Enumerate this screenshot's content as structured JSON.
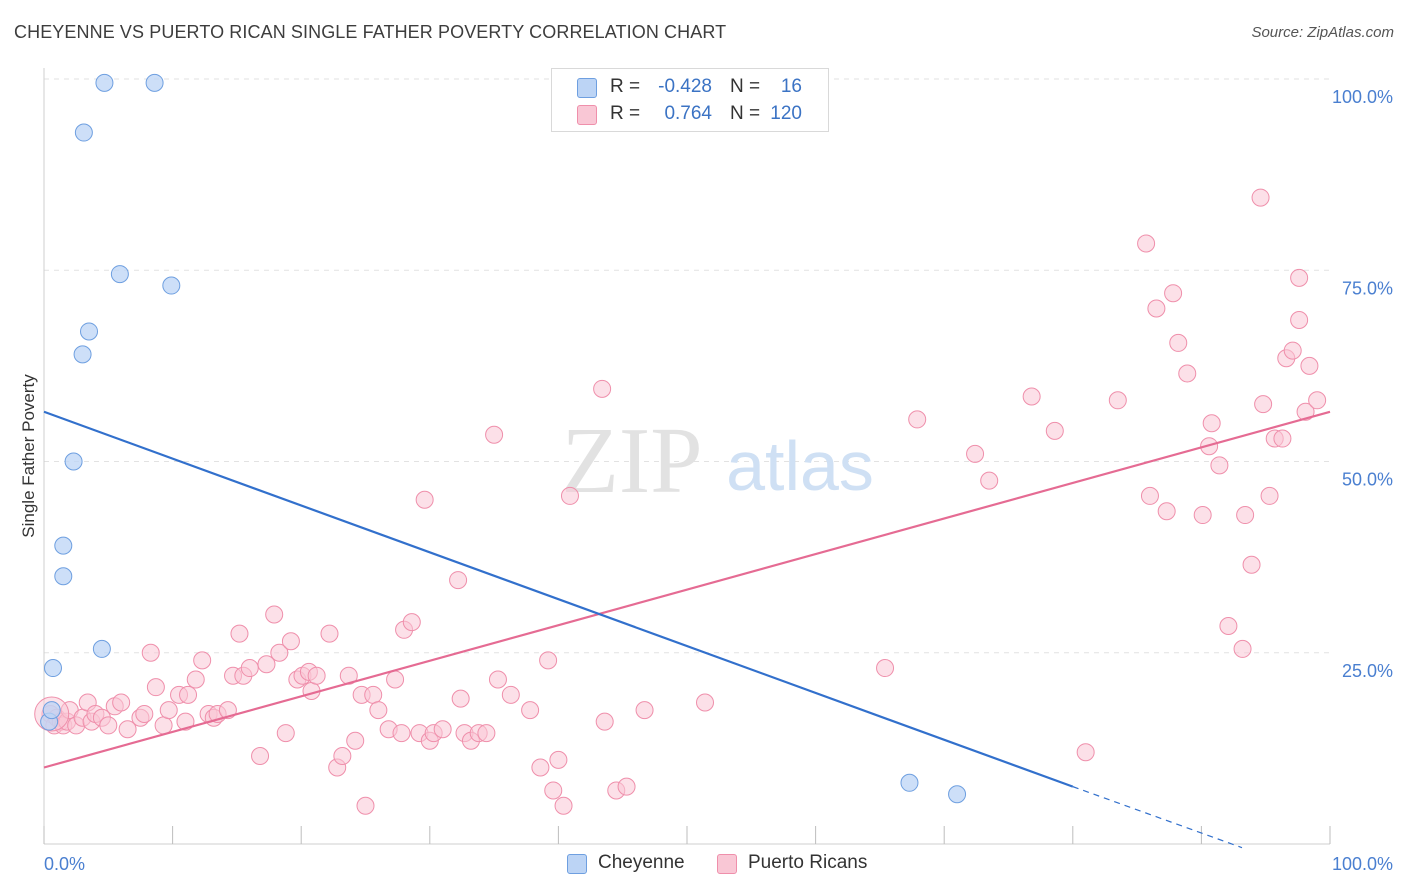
{
  "title": "CHEYENNE VS PUERTO RICAN SINGLE FATHER POVERTY CORRELATION CHART",
  "source": "Source: ZipAtlas.com",
  "watermark": {
    "zip": "ZIP",
    "atlas": "atlas"
  },
  "stats": [
    {
      "r_label": "R =",
      "r_value": "-0.428",
      "n_label": "N =",
      "n_value": "16",
      "color": "#a9c8f2"
    },
    {
      "r_label": "R =",
      "r_value": "0.764",
      "n_label": "N =",
      "n_value": "120",
      "color": "#f7b3c6"
    }
  ],
  "legend": [
    {
      "label": "Cheyenne",
      "color": "#a9c8f2"
    },
    {
      "label": "Puerto Ricans",
      "color": "#f7b3c6"
    }
  ],
  "colors": {
    "cheyenne_fill": "#bcd4f5",
    "cheyenne_stroke": "#6e9fe0",
    "cheyenne_line": "#3270cc",
    "pr_fill": "#f9c7d5",
    "pr_stroke": "#ef8fab",
    "pr_line": "#e56b93",
    "grid": "#e2e2e2",
    "axis_text": "#4a7fd0"
  },
  "chart_data": {
    "type": "scatter",
    "title": "CHEYENNE VS PUERTO RICAN SINGLE FATHER POVERTY CORRELATION CHART",
    "xlabel": "",
    "ylabel": "Single Father Poverty",
    "x_tick_labels": [
      "0.0%",
      "100.0%"
    ],
    "y_tick_labels": [
      "25.0%",
      "50.0%",
      "75.0%",
      "100.0%"
    ],
    "xlim": [
      0,
      100
    ],
    "ylim": [
      0,
      100
    ],
    "grid": true,
    "legend_position": "bottom-center",
    "series": [
      {
        "name": "Cheyenne",
        "points": [
          [
            0.4,
            16
          ],
          [
            0.6,
            17.5
          ],
          [
            0.7,
            23
          ],
          [
            1.5,
            35
          ],
          [
            1.5,
            39
          ],
          [
            2.3,
            50
          ],
          [
            3,
            64
          ],
          [
            3.1,
            93
          ],
          [
            3.5,
            67
          ],
          [
            4.5,
            25.5
          ],
          [
            4.7,
            99.5
          ],
          [
            5.9,
            74.5
          ],
          [
            8.6,
            99.5
          ],
          [
            9.9,
            73
          ],
          [
            67.3,
            8
          ],
          [
            71,
            6.5
          ]
        ],
        "trend": {
          "x": [
            0,
            80
          ],
          "y": [
            56.5,
            7.5
          ],
          "dashed_to": [
            100,
            -1
          ]
        }
      },
      {
        "name": "Puerto Ricans",
        "points": [
          [
            0.5,
            17
          ],
          [
            0.8,
            15.5
          ],
          [
            1,
            16.5
          ],
          [
            1.3,
            16
          ],
          [
            1.5,
            15.5
          ],
          [
            1.8,
            16
          ],
          [
            2,
            17.5
          ],
          [
            2.5,
            15.5
          ],
          [
            3,
            16.5
          ],
          [
            3.4,
            18.5
          ],
          [
            3.7,
            16
          ],
          [
            4,
            17
          ],
          [
            4.5,
            16.5
          ],
          [
            5,
            15.5
          ],
          [
            5.5,
            18
          ],
          [
            6,
            18.5
          ],
          [
            6.5,
            15
          ],
          [
            7.5,
            16.5
          ],
          [
            7.8,
            17
          ],
          [
            8.3,
            25
          ],
          [
            8.7,
            20.5
          ],
          [
            9.3,
            15.5
          ],
          [
            9.7,
            17.5
          ],
          [
            10.5,
            19.5
          ],
          [
            11,
            16
          ],
          [
            11.2,
            19.5
          ],
          [
            11.8,
            21.5
          ],
          [
            12.3,
            24
          ],
          [
            12.8,
            17
          ],
          [
            13.2,
            16.5
          ],
          [
            13.5,
            17
          ],
          [
            14.3,
            17.5
          ],
          [
            14.7,
            22
          ],
          [
            15.2,
            27.5
          ],
          [
            15.5,
            22
          ],
          [
            16,
            23
          ],
          [
            16.8,
            11.5
          ],
          [
            17.3,
            23.5
          ],
          [
            17.9,
            30
          ],
          [
            18.3,
            25
          ],
          [
            18.8,
            14.5
          ],
          [
            19.2,
            26.5
          ],
          [
            19.7,
            21.5
          ],
          [
            20.1,
            22
          ],
          [
            20.6,
            22.5
          ],
          [
            20.8,
            20
          ],
          [
            21.2,
            22
          ],
          [
            22.2,
            27.5
          ],
          [
            22.8,
            10
          ],
          [
            23.2,
            11.5
          ],
          [
            23.7,
            22
          ],
          [
            24.2,
            13.5
          ],
          [
            24.7,
            19.5
          ],
          [
            25,
            5
          ],
          [
            25.6,
            19.5
          ],
          [
            26,
            17.5
          ],
          [
            26.8,
            15
          ],
          [
            27.3,
            21.5
          ],
          [
            27.8,
            14.5
          ],
          [
            28,
            28
          ],
          [
            28.6,
            29
          ],
          [
            29.2,
            14.5
          ],
          [
            29.6,
            45
          ],
          [
            30,
            13.5
          ],
          [
            30.3,
            14.5
          ],
          [
            31,
            15
          ],
          [
            32.2,
            34.5
          ],
          [
            32.4,
            19
          ],
          [
            32.7,
            14.5
          ],
          [
            33.2,
            13.5
          ],
          [
            33.8,
            14.5
          ],
          [
            34.4,
            14.5
          ],
          [
            35,
            53.5
          ],
          [
            35.3,
            21.5
          ],
          [
            36.3,
            19.5
          ],
          [
            37.8,
            17.5
          ],
          [
            38.6,
            10
          ],
          [
            39.2,
            24
          ],
          [
            39.6,
            7
          ],
          [
            40,
            11
          ],
          [
            40.4,
            5
          ],
          [
            40.9,
            45.5
          ],
          [
            43.4,
            59.5
          ],
          [
            43.6,
            16
          ],
          [
            44.5,
            7
          ],
          [
            45.3,
            7.5
          ],
          [
            46.7,
            17.5
          ],
          [
            51.4,
            18.5
          ],
          [
            65.4,
            23
          ],
          [
            67.9,
            55.5
          ],
          [
            72.4,
            51
          ],
          [
            73.5,
            47.5
          ],
          [
            76.8,
            58.5
          ],
          [
            78.6,
            54
          ],
          [
            81,
            12
          ],
          [
            83.5,
            58
          ],
          [
            85.7,
            78.5
          ],
          [
            86,
            45.5
          ],
          [
            86.5,
            70
          ],
          [
            87.3,
            43.5
          ],
          [
            87.8,
            72
          ],
          [
            88.2,
            65.5
          ],
          [
            88.9,
            61.5
          ],
          [
            90.1,
            43
          ],
          [
            90.6,
            52
          ],
          [
            90.8,
            55
          ],
          [
            91.4,
            49.5
          ],
          [
            92.1,
            28.5
          ],
          [
            93.2,
            25.5
          ],
          [
            93.4,
            43
          ],
          [
            93.9,
            36.5
          ],
          [
            94.6,
            84.5
          ],
          [
            94.8,
            57.5
          ],
          [
            95.3,
            45.5
          ],
          [
            95.7,
            53
          ],
          [
            96.3,
            53
          ],
          [
            96.6,
            63.5
          ],
          [
            97.1,
            64.5
          ],
          [
            97.6,
            68.5
          ],
          [
            97.6,
            74
          ],
          [
            98.1,
            56.5
          ],
          [
            98.4,
            62.5
          ],
          [
            99,
            58
          ]
        ],
        "trend": {
          "x": [
            0,
            100
          ],
          "y": [
            10,
            56.5
          ]
        }
      }
    ]
  }
}
